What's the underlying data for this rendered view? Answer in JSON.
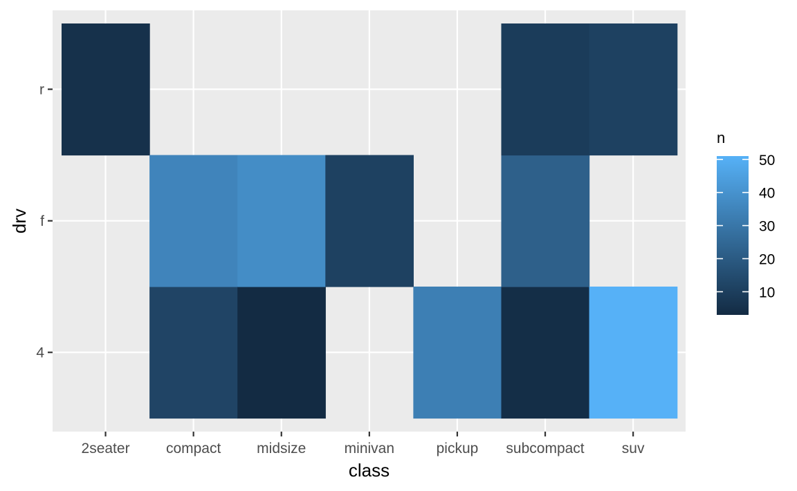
{
  "chart_data": {
    "type": "heatmap",
    "title": "",
    "xlabel": "class",
    "ylabel": "drv",
    "x_categories": [
      "2seater",
      "compact",
      "midsize",
      "minivan",
      "pickup",
      "subcompact",
      "suv"
    ],
    "y_categories": [
      "4",
      "f",
      "r"
    ],
    "cells": [
      {
        "x": "2seater",
        "y": "r",
        "n": 5
      },
      {
        "x": "compact",
        "y": "4",
        "n": 12
      },
      {
        "x": "compact",
        "y": "f",
        "n": 35
      },
      {
        "x": "midsize",
        "y": "4",
        "n": 3
      },
      {
        "x": "midsize",
        "y": "f",
        "n": 38
      },
      {
        "x": "minivan",
        "y": "f",
        "n": 11
      },
      {
        "x": "pickup",
        "y": "4",
        "n": 33
      },
      {
        "x": "subcompact",
        "y": "4",
        "n": 4
      },
      {
        "x": "subcompact",
        "y": "f",
        "n": 22
      },
      {
        "x": "subcompact",
        "y": "r",
        "n": 9
      },
      {
        "x": "suv",
        "y": "4",
        "n": 51
      },
      {
        "x": "suv",
        "y": "r",
        "n": 11
      }
    ],
    "legend": {
      "title": "n",
      "ticks": [
        10,
        20,
        30,
        40,
        50
      ],
      "min": 3,
      "max": 51,
      "position": "right"
    },
    "colors": {
      "low": "#132B43",
      "high": "#56B1F7",
      "panel_background": "#EBEBEB",
      "grid": "#FFFFFF",
      "axis_text": "#4D4D4D",
      "axis_title": "#000000"
    },
    "grid": true
  }
}
